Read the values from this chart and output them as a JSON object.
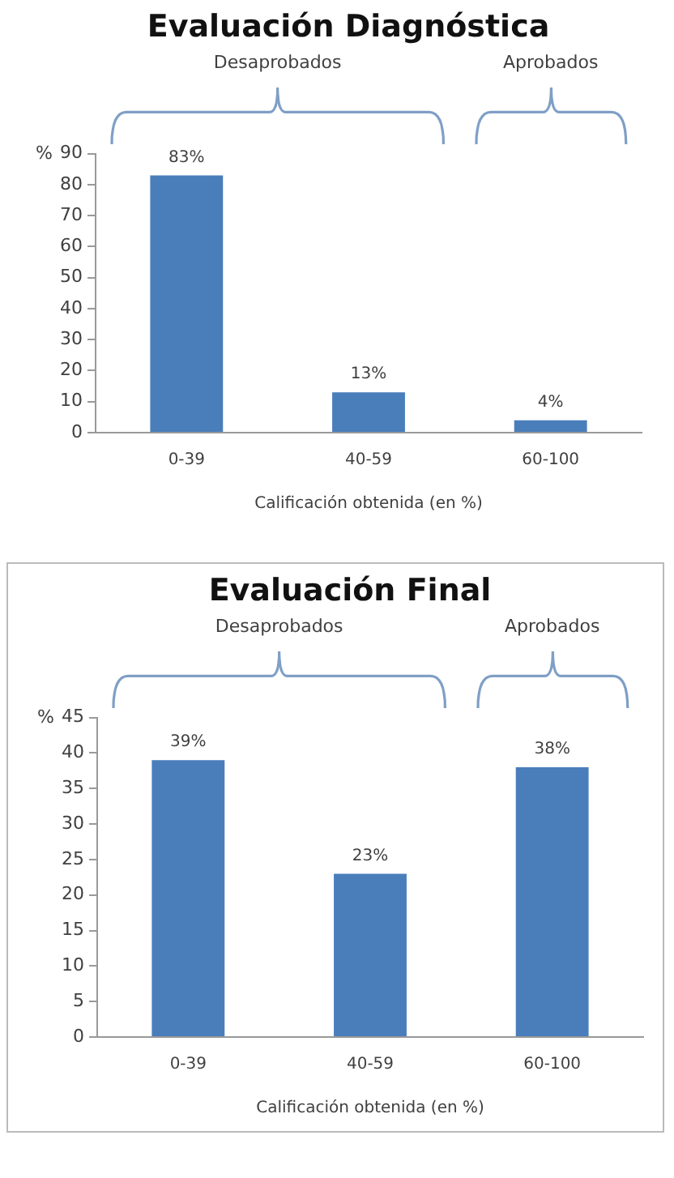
{
  "chart_data": [
    {
      "type": "bar",
      "title": "Evaluación Diagnóstica",
      "xlabel": "Calificación obtenida (en %)",
      "ylabel": "%",
      "categories": [
        "0-39",
        "40-59",
        "60-100"
      ],
      "values": [
        83,
        13,
        4
      ],
      "value_labels": [
        "83%",
        "13%",
        "4%"
      ],
      "color": "#4a7ebb",
      "ylim": [
        0,
        90
      ],
      "yticks": [
        0,
        10,
        20,
        30,
        40,
        50,
        60,
        70,
        80,
        90
      ],
      "grid": false,
      "annotations": [
        "Desaprobados",
        "Aprobados"
      ]
    },
    {
      "type": "bar",
      "title": "Evaluación Final",
      "xlabel": "Calificación obtenida (en %)",
      "ylabel": "%",
      "categories": [
        "0-39",
        "40-59",
        "60-100"
      ],
      "values": [
        39,
        23,
        38
      ],
      "value_labels": [
        "39%",
        "23%",
        "38%"
      ],
      "color": "#4a7ebb",
      "ylim": [
        0,
        45
      ],
      "yticks": [
        0,
        5,
        10,
        15,
        20,
        25,
        30,
        35,
        40,
        45
      ],
      "grid": false,
      "annotations": [
        "Desaprobados",
        "Aprobados"
      ]
    }
  ]
}
